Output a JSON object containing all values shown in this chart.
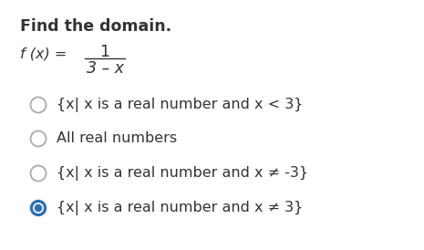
{
  "title": "Find the domain.",
  "numerator": "1",
  "denominator": "3 – x",
  "options": [
    "{x| x is a real number and x < 3}",
    "All real numbers",
    "{x| x is a real number and x ≠ -3}",
    "{x| x is a real number and x ≠ 3}"
  ],
  "selected_index": 3,
  "background_color": "#ffffff",
  "text_color": "#333333",
  "circle_fill_color": "#2f6db5",
  "unselected_edge_color": "#aaaaaa",
  "title_fontsize": 12.5,
  "option_fontsize": 11.5,
  "function_fontsize": 11.5
}
